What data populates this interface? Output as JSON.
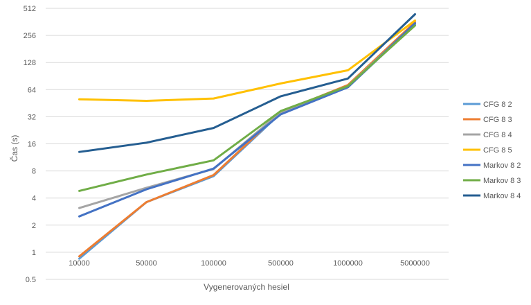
{
  "chart_data": {
    "type": "line",
    "title": "",
    "xlabel": "Vygenerovaných hesiel",
    "ylabel": "Čas (s)",
    "y_scale": "log2",
    "ylim": [
      0.5,
      512
    ],
    "y_ticks": [
      "0.5",
      "1",
      "2",
      "4",
      "8",
      "16",
      "32",
      "64",
      "128",
      "256",
      "512"
    ],
    "categories": [
      "10000",
      "50000",
      "100000",
      "500000",
      "1000000",
      "5000000"
    ],
    "grid": "horizontal",
    "legend_position": "right",
    "series": [
      {
        "name": "CFG 8 2",
        "color": "#5b9bd5",
        "values": [
          0.85,
          3.6,
          7.0,
          35,
          68,
          340
        ]
      },
      {
        "name": "CFG 8 3",
        "color": "#ed7d31",
        "values": [
          0.9,
          3.6,
          7.2,
          36,
          72,
          360
        ]
      },
      {
        "name": "CFG 8 4",
        "color": "#a5a5a5",
        "values": [
          3.1,
          5.2,
          8.4,
          36,
          70,
          345
        ]
      },
      {
        "name": "CFG 8 5",
        "color": "#ffc000",
        "values": [
          50,
          48,
          51,
          75,
          105,
          375
        ]
      },
      {
        "name": "Markov 8 2",
        "color": "#4472c4",
        "values": [
          2.5,
          5.0,
          8.5,
          34,
          68,
          350
        ]
      },
      {
        "name": "Markov 8 3",
        "color": "#70ad47",
        "values": [
          4.8,
          7.3,
          10.5,
          37,
          70,
          330
        ]
      },
      {
        "name": "Markov 8 4",
        "color": "#255e91",
        "values": [
          13,
          16.5,
          24,
          54,
          85,
          440
        ]
      }
    ]
  }
}
